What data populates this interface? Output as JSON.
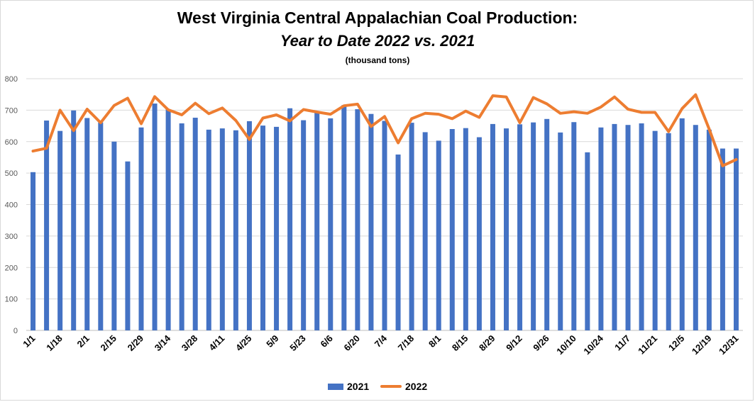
{
  "title": "West Virginia Central Appalachian Coal Production:",
  "subtitle": "Year to Date 2022 vs. 2021",
  "unit_label": "(thousand tons)",
  "colors": {
    "bar_2021": "#4472C4",
    "line_2022": "#ED7D31",
    "grid": "#d9d9d9"
  },
  "legend": {
    "items": [
      {
        "label": "2021",
        "kind": "bar"
      },
      {
        "label": "2022",
        "kind": "line"
      }
    ]
  },
  "chart_data": {
    "type": "bar",
    "title": "West Virginia Central Appalachian Coal Production:",
    "subtitle": "Year to Date 2022 vs. 2021",
    "ylabel": "(thousand tons)",
    "ylim": [
      0,
      800
    ],
    "yticks": [
      0,
      100,
      200,
      300,
      400,
      500,
      600,
      700,
      800
    ],
    "grid": true,
    "legend_position": "bottom",
    "x_tick_labels": [
      "1/1",
      "1/18",
      "2/1",
      "2/15",
      "2/29",
      "3/14",
      "3/28",
      "4/11",
      "4/25",
      "5/9",
      "5/23",
      "6/6",
      "6/20",
      "7/4",
      "7/18",
      "8/1",
      "8/15",
      "8/29",
      "9/12",
      "9/26",
      "10/10",
      "10/24",
      "11/7",
      "11/21",
      "12/5",
      "12/19",
      "12/31"
    ],
    "series": [
      {
        "name": "2021",
        "type": "bar",
        "values": [
          503,
          667,
          634,
          699,
          675,
          661,
          600,
          537,
          645,
          721,
          703,
          658,
          676,
          638,
          642,
          636,
          665,
          651,
          647,
          706,
          668,
          691,
          674,
          716,
          703,
          688,
          666,
          559,
          660,
          630,
          603,
          640,
          643,
          614,
          656,
          642,
          655,
          661,
          672,
          629,
          662,
          566,
          645,
          656,
          653,
          658,
          634,
          627,
          674,
          653,
          638,
          578,
          578
        ]
      },
      {
        "name": "2022",
        "type": "line",
        "values": [
          570,
          579,
          700,
          635,
          703,
          660,
          715,
          738,
          657,
          743,
          701,
          685,
          722,
          689,
          707,
          667,
          607,
          675,
          685,
          666,
          702,
          694,
          687,
          714,
          719,
          648,
          680,
          596,
          673,
          690,
          687,
          673,
          697,
          677,
          746,
          742,
          660,
          740,
          720,
          690,
          695,
          690,
          710,
          742,
          703,
          693,
          693,
          632,
          705,
          749,
          640,
          523,
          543
        ]
      }
    ]
  }
}
